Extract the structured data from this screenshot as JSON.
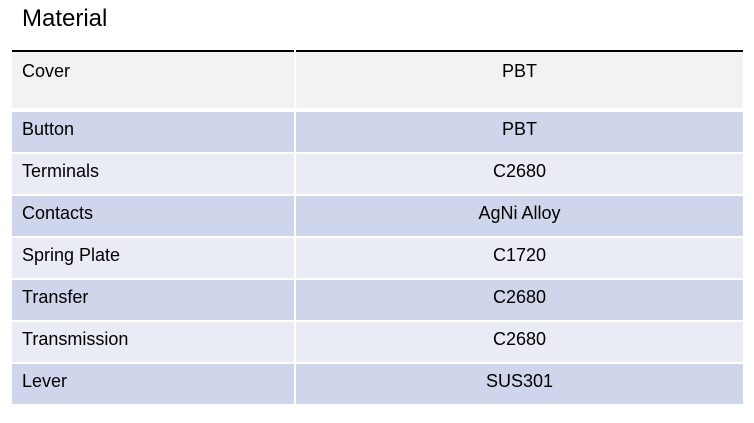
{
  "title": "Material",
  "colors": {
    "header_row": "#f2f2f2",
    "dark_row": "#cfd5ea",
    "light_row": "#e9ebf5"
  },
  "rows": [
    {
      "part": "Cover",
      "material": "PBT"
    },
    {
      "part": "Button",
      "material": "PBT"
    },
    {
      "part": "Terminals",
      "material": "C2680"
    },
    {
      "part": "Contacts",
      "material": "AgNi Alloy"
    },
    {
      "part": "Spring Plate",
      "material": "C1720"
    },
    {
      "part": "Transfer",
      "material": "C2680"
    },
    {
      "part": "Transmission",
      "material": "C2680"
    },
    {
      "part": "Lever",
      "material": "SUS301"
    }
  ]
}
